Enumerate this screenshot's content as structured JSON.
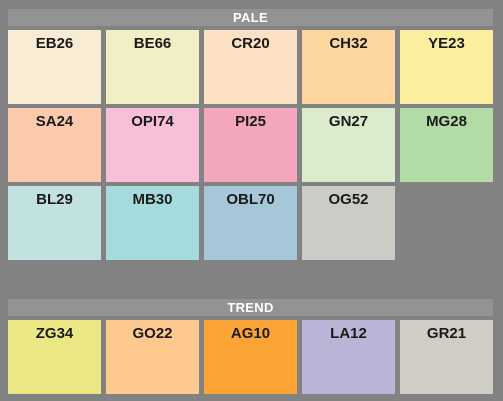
{
  "sections": [
    {
      "title": "PALE",
      "swatches": [
        {
          "code": "EB26",
          "color": "#f8ecd4"
        },
        {
          "code": "BE66",
          "color": "#f2efc6"
        },
        {
          "code": "CR20",
          "color": "#fbe0c3"
        },
        {
          "code": "CH32",
          "color": "#fdd69d"
        },
        {
          "code": "YE23",
          "color": "#fcee9f"
        },
        {
          "code": "SA24",
          "color": "#fbcaad"
        },
        {
          "code": "OPI74",
          "color": "#f7c0d8"
        },
        {
          "code": "PI25",
          "color": "#f4a6bd"
        },
        {
          "code": "GN27",
          "color": "#daeccc"
        },
        {
          "code": "MG28",
          "color": "#b2dba5"
        },
        {
          "code": "BL29",
          "color": "#c2e2e1"
        },
        {
          "code": "MB30",
          "color": "#a5dbdd"
        },
        {
          "code": "OBL70",
          "color": "#a6c7d7"
        },
        {
          "code": "OG52",
          "color": "#cccbc5"
        }
      ]
    },
    {
      "title": "TREND",
      "swatches": [
        {
          "code": "ZG34",
          "color": "#eae784"
        },
        {
          "code": "GO22",
          "color": "#fdc98f"
        },
        {
          "code": "AG10",
          "color": "#fda436"
        },
        {
          "code": "LA12",
          "color": "#b9b5d6"
        },
        {
          "code": "GR21",
          "color": "#cfcdc5"
        }
      ]
    }
  ]
}
